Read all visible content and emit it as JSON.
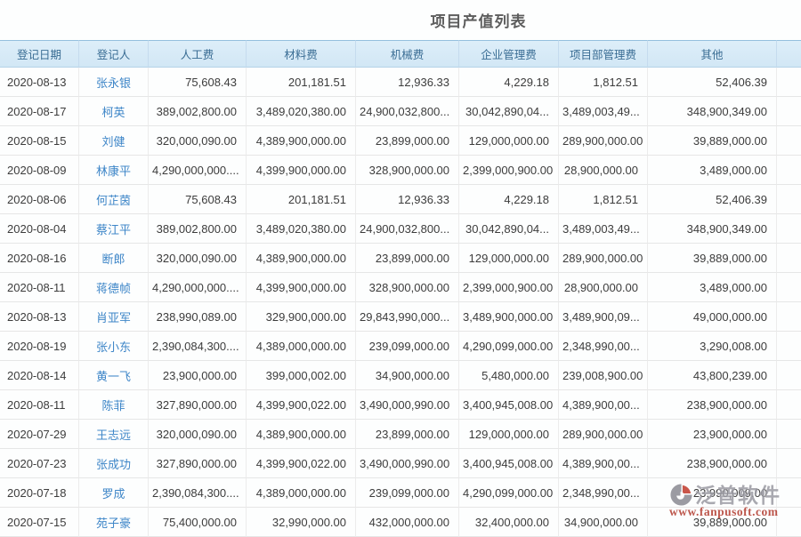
{
  "title": "项目产值列表",
  "colors": {
    "header_bg": "#d6e9f6",
    "header_text": "#3a6d94",
    "link": "#3e86c8",
    "watermark_red": "#b23a2e",
    "watermark_gray": "#9b9ba3"
  },
  "table": {
    "columns": [
      {
        "key": "date",
        "label": "登记日期"
      },
      {
        "key": "registrant",
        "label": "登记人"
      },
      {
        "key": "labor_cost",
        "label": "人工费"
      },
      {
        "key": "material_cost",
        "label": "材料费"
      },
      {
        "key": "machinery_cost",
        "label": "机械费"
      },
      {
        "key": "enterprise_mgmt_fee",
        "label": "企业管理费"
      },
      {
        "key": "project_dept_mgmt_fee",
        "label": "项目部管理费"
      },
      {
        "key": "other",
        "label": "其他"
      },
      {
        "key": "spacer",
        "label": ""
      }
    ],
    "rows": [
      {
        "date": "2020-08-13",
        "registrant": "张永银",
        "labor_cost": "75,608.43",
        "material_cost": "201,181.51",
        "machinery_cost": "12,936.33",
        "enterprise_mgmt_fee": "4,229.18",
        "project_dept_mgmt_fee": "1,812.51",
        "other": "52,406.39"
      },
      {
        "date": "2020-08-17",
        "registrant": "柯英",
        "labor_cost": "389,002,800.00",
        "material_cost": "3,489,020,380.00",
        "machinery_cost": "24,900,032,800...",
        "enterprise_mgmt_fee": "30,042,890,04...",
        "project_dept_mgmt_fee": "3,489,003,49...",
        "other": "348,900,349.00"
      },
      {
        "date": "2020-08-15",
        "registrant": "刘健",
        "labor_cost": "320,000,090.00",
        "material_cost": "4,389,900,000.00",
        "machinery_cost": "23,899,000.00",
        "enterprise_mgmt_fee": "129,000,000.00",
        "project_dept_mgmt_fee": "289,900,000.00",
        "other": "39,889,000.00"
      },
      {
        "date": "2020-08-09",
        "registrant": "林康平",
        "labor_cost": "4,290,000,000....",
        "material_cost": "4,399,900,000.00",
        "machinery_cost": "328,900,000.00",
        "enterprise_mgmt_fee": "2,399,000,900.00",
        "project_dept_mgmt_fee": "28,900,000.00",
        "other": "3,489,000.00"
      },
      {
        "date": "2020-08-06",
        "registrant": "何芷茵",
        "labor_cost": "75,608.43",
        "material_cost": "201,181.51",
        "machinery_cost": "12,936.33",
        "enterprise_mgmt_fee": "4,229.18",
        "project_dept_mgmt_fee": "1,812.51",
        "other": "52,406.39"
      },
      {
        "date": "2020-08-04",
        "registrant": "蔡江平",
        "labor_cost": "389,002,800.00",
        "material_cost": "3,489,020,380.00",
        "machinery_cost": "24,900,032,800...",
        "enterprise_mgmt_fee": "30,042,890,04...",
        "project_dept_mgmt_fee": "3,489,003,49...",
        "other": "348,900,349.00"
      },
      {
        "date": "2020-08-16",
        "registrant": "断郎",
        "labor_cost": "320,000,090.00",
        "material_cost": "4,389,900,000.00",
        "machinery_cost": "23,899,000.00",
        "enterprise_mgmt_fee": "129,000,000.00",
        "project_dept_mgmt_fee": "289,900,000.00",
        "other": "39,889,000.00"
      },
      {
        "date": "2020-08-11",
        "registrant": "蒋德帧",
        "labor_cost": "4,290,000,000....",
        "material_cost": "4,399,900,000.00",
        "machinery_cost": "328,900,000.00",
        "enterprise_mgmt_fee": "2,399,000,900.00",
        "project_dept_mgmt_fee": "28,900,000.00",
        "other": "3,489,000.00"
      },
      {
        "date": "2020-08-13",
        "registrant": "肖亚军",
        "labor_cost": "238,990,089.00",
        "material_cost": "329,900,000.00",
        "machinery_cost": "29,843,990,000...",
        "enterprise_mgmt_fee": "3,489,900,000.00",
        "project_dept_mgmt_fee": "3,489,900,09...",
        "other": "49,000,000.00"
      },
      {
        "date": "2020-08-19",
        "registrant": "张小东",
        "labor_cost": "2,390,084,300....",
        "material_cost": "4,389,000,000.00",
        "machinery_cost": "239,099,000.00",
        "enterprise_mgmt_fee": "4,290,099,000.00",
        "project_dept_mgmt_fee": "2,348,990,00...",
        "other": "3,290,008.00"
      },
      {
        "date": "2020-08-14",
        "registrant": "黄一飞",
        "labor_cost": "23,900,000.00",
        "material_cost": "399,000,002.00",
        "machinery_cost": "34,900,000.00",
        "enterprise_mgmt_fee": "5,480,000.00",
        "project_dept_mgmt_fee": "239,008,900.00",
        "other": "43,800,239.00"
      },
      {
        "date": "2020-08-11",
        "registrant": "陈菲",
        "labor_cost": "327,890,000.00",
        "material_cost": "4,399,900,022.00",
        "machinery_cost": "3,490,000,990.00",
        "enterprise_mgmt_fee": "3,400,945,008.00",
        "project_dept_mgmt_fee": "4,389,900,00...",
        "other": "238,900,000.00"
      },
      {
        "date": "2020-07-29",
        "registrant": "王志远",
        "labor_cost": "320,000,090.00",
        "material_cost": "4,389,900,000.00",
        "machinery_cost": "23,899,000.00",
        "enterprise_mgmt_fee": "129,000,000.00",
        "project_dept_mgmt_fee": "289,900,000.00",
        "other": "23,900,000.00"
      },
      {
        "date": "2020-07-23",
        "registrant": "张成功",
        "labor_cost": "327,890,000.00",
        "material_cost": "4,399,900,022.00",
        "machinery_cost": "3,490,000,990.00",
        "enterprise_mgmt_fee": "3,400,945,008.00",
        "project_dept_mgmt_fee": "4,389,900,00...",
        "other": "238,900,000.00"
      },
      {
        "date": "2020-07-18",
        "registrant": "罗成",
        "labor_cost": "2,390,084,300....",
        "material_cost": "4,389,000,000.00",
        "machinery_cost": "239,099,000.00",
        "enterprise_mgmt_fee": "4,290,099,000.00",
        "project_dept_mgmt_fee": "2,348,990,00...",
        "other": "23,990,009.00"
      },
      {
        "date": "2020-07-15",
        "registrant": "苑子豪",
        "labor_cost": "75,400,000.00",
        "material_cost": "32,990,000.00",
        "machinery_cost": "432,000,000.00",
        "enterprise_mgmt_fee": "32,400,000.00",
        "project_dept_mgmt_fee": "34,900,000.00",
        "other": "39,889,000.00"
      }
    ]
  },
  "watermark": {
    "brand": "泛普软件",
    "url": "www.fanpusoft.com"
  }
}
